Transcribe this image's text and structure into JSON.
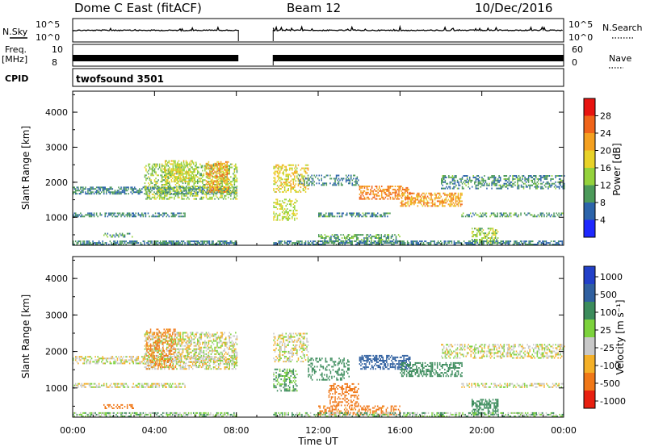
{
  "header": {
    "station": "Dome C East (fitACF)",
    "beam": "Beam 12",
    "date": "10/Dec/2016"
  },
  "labels": {
    "nsky": "N.Sky",
    "freq": "Freq.",
    "mhz": "[MHz]",
    "cpid": "CPID",
    "nsearch": "N.Search",
    "nave": "Nave",
    "cpid_name": "twofsound 3501",
    "xlabel": "Time UT",
    "ylabel": "Slant Range [km]",
    "power_label": "Power [dB]",
    "velocity_label": "Velocity [m s⁻¹]"
  },
  "noise_axis": {
    "left_top": "10^5",
    "left_bottom": "10^0",
    "right_top": "10^5",
    "right_bottom": "10^0"
  },
  "freq_axis": {
    "left_top": "10",
    "left_bottom": "8",
    "right_top": "60",
    "right_bottom": "0"
  },
  "power_scale": {
    "ticks": [
      "28",
      "24",
      "20",
      "16",
      "12",
      "8",
      "4"
    ],
    "colors": [
      "#e81410",
      "#f0641a",
      "#f4a020",
      "#e8d228",
      "#94d23c",
      "#4c9a5a",
      "#2c64aa",
      "#1e28ff"
    ]
  },
  "velocity_scale": {
    "ticks": [
      "1000",
      "500",
      "100",
      "25",
      "-25",
      "-100",
      "-500",
      "-1000"
    ],
    "colors": [
      "#2240c8",
      "#3060a0",
      "#3c8c5c",
      "#7cd23c",
      "#c8c8c8",
      "#f4b028",
      "#f07818",
      "#e82010"
    ]
  },
  "chart_data": [
    {
      "type": "heatmap",
      "title": "Power",
      "xlabel": "Time UT",
      "ylabel": "Slant Range [km]",
      "x_ticks": [
        "00:00",
        "04:00",
        "08:00",
        "12:00",
        "16:00",
        "20:00",
        "00:00"
      ],
      "y_ticks": [
        "1000",
        "2000",
        "3000",
        "4000"
      ],
      "xlim_hours": [
        0,
        24
      ],
      "ylim_km": [
        200,
        4600
      ],
      "data_gap_hours": [
        8.1,
        9.8
      ],
      "colorbar": {
        "label": "Power [dB]",
        "ticks": [
          4,
          8,
          12,
          16,
          20,
          24,
          28
        ]
      },
      "regions": [
        {
          "t0": 0.0,
          "t1": 8.0,
          "r0": 1650,
          "r1": 1850,
          "p": 8,
          "d": 0.6
        },
        {
          "t0": 0.0,
          "t1": 5.5,
          "r0": 1000,
          "r1": 1120,
          "p": 8,
          "d": 0.55
        },
        {
          "t0": 0.0,
          "t1": 8.0,
          "r0": 200,
          "r1": 330,
          "p": 8,
          "d": 0.7
        },
        {
          "t0": 1.5,
          "t1": 3.0,
          "r0": 420,
          "r1": 520,
          "p": 10,
          "d": 0.35
        },
        {
          "t0": 3.5,
          "t1": 8.0,
          "r0": 1500,
          "r1": 2500,
          "p": 14,
          "d": 0.45
        },
        {
          "t0": 6.5,
          "t1": 7.6,
          "r0": 1700,
          "r1": 2600,
          "p": 22,
          "d": 0.5
        },
        {
          "t0": 4.5,
          "t1": 6.0,
          "r0": 2000,
          "r1": 2600,
          "p": 17,
          "d": 0.4
        },
        {
          "t0": 9.8,
          "t1": 11.5,
          "r0": 1700,
          "r1": 2500,
          "p": 18,
          "d": 0.45
        },
        {
          "t0": 9.8,
          "t1": 11.0,
          "r0": 900,
          "r1": 1500,
          "p": 16,
          "d": 0.45
        },
        {
          "t0": 11.0,
          "t1": 14.0,
          "r0": 1900,
          "r1": 2200,
          "p": 8,
          "d": 0.35
        },
        {
          "t0": 12.0,
          "t1": 15.5,
          "r0": 1000,
          "r1": 1120,
          "p": 9,
          "d": 0.55
        },
        {
          "t0": 14.0,
          "t1": 16.5,
          "r0": 1500,
          "r1": 1900,
          "p": 24,
          "d": 0.55
        },
        {
          "t0": 16.0,
          "t1": 19.0,
          "r0": 1300,
          "r1": 1700,
          "p": 22,
          "d": 0.5
        },
        {
          "t0": 18.0,
          "t1": 24.0,
          "r0": 1800,
          "r1": 2200,
          "p": 9,
          "d": 0.45
        },
        {
          "t0": 19.0,
          "t1": 24.0,
          "r0": 1000,
          "r1": 1100,
          "p": 10,
          "d": 0.45
        },
        {
          "t0": 12.0,
          "t1": 16.0,
          "r0": 250,
          "r1": 480,
          "p": 11,
          "d": 0.5
        },
        {
          "t0": 19.5,
          "t1": 20.8,
          "r0": 250,
          "r1": 700,
          "p": 14,
          "d": 0.55
        },
        {
          "t0": 9.8,
          "t1": 24.0,
          "r0": 200,
          "r1": 330,
          "p": 8,
          "d": 0.6
        }
      ]
    },
    {
      "type": "heatmap",
      "title": "Velocity",
      "xlabel": "Time UT",
      "ylabel": "Slant Range [km]",
      "x_ticks": [
        "00:00",
        "04:00",
        "08:00",
        "12:00",
        "16:00",
        "20:00",
        "00:00"
      ],
      "y_ticks": [
        "1000",
        "2000",
        "3000",
        "4000"
      ],
      "xlim_hours": [
        0,
        24
      ],
      "ylim_km": [
        200,
        4600
      ],
      "data_gap_hours": [
        8.1,
        9.8
      ],
      "colorbar": {
        "label": "Velocity [m s⁻¹]",
        "ticks": [
          1000,
          500,
          100,
          25,
          -25,
          -100,
          -500,
          -1000
        ]
      },
      "regions": [
        {
          "t0": 0.0,
          "t1": 8.0,
          "r0": 1650,
          "r1": 1850,
          "v": 0,
          "d": 0.5
        },
        {
          "t0": 0.0,
          "t1": 5.5,
          "r0": 1000,
          "r1": 1120,
          "v": 0,
          "d": 0.55
        },
        {
          "t0": 0.0,
          "t1": 8.0,
          "r0": 200,
          "r1": 330,
          "v": 40,
          "d": 0.55
        },
        {
          "t0": 1.5,
          "t1": 3.0,
          "r0": 420,
          "r1": 520,
          "v": -400,
          "d": 0.45
        },
        {
          "t0": 3.5,
          "t1": 8.0,
          "r0": 1500,
          "r1": 2500,
          "v": 0,
          "d": 0.5
        },
        {
          "t0": 3.6,
          "t1": 5.0,
          "r0": 1500,
          "r1": 2600,
          "v": -150,
          "d": 0.3
        },
        {
          "t0": 9.8,
          "t1": 11.5,
          "r0": 1700,
          "r1": 2500,
          "v": 0,
          "d": 0.45
        },
        {
          "t0": 9.8,
          "t1": 11.0,
          "r0": 900,
          "r1": 1500,
          "v": 60,
          "d": 0.45
        },
        {
          "t0": 11.5,
          "t1": 13.5,
          "r0": 1200,
          "r1": 1800,
          "v": 150,
          "d": 0.3
        },
        {
          "t0": 12.5,
          "t1": 14.0,
          "r0": 500,
          "r1": 1100,
          "v": -200,
          "d": 0.4
        },
        {
          "t0": 14.0,
          "t1": 16.5,
          "r0": 1500,
          "r1": 1900,
          "v": 600,
          "d": 0.55
        },
        {
          "t0": 16.0,
          "t1": 19.0,
          "r0": 1300,
          "r1": 1700,
          "v": 180,
          "d": 0.5
        },
        {
          "t0": 18.0,
          "t1": 24.0,
          "r0": 1800,
          "r1": 2200,
          "v": 0,
          "d": 0.45
        },
        {
          "t0": 19.0,
          "t1": 24.0,
          "r0": 1000,
          "r1": 1100,
          "v": 0,
          "d": 0.45
        },
        {
          "t0": 12.0,
          "t1": 16.0,
          "r0": 250,
          "r1": 480,
          "v": -150,
          "d": 0.45
        },
        {
          "t0": 19.5,
          "t1": 20.8,
          "r0": 250,
          "r1": 700,
          "v": 150,
          "d": 0.55
        },
        {
          "t0": 9.8,
          "t1": 24.0,
          "r0": 200,
          "r1": 330,
          "v": 40,
          "d": 0.5
        }
      ]
    }
  ]
}
